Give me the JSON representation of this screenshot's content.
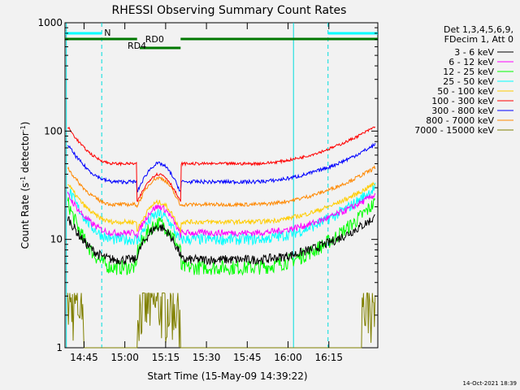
{
  "chart_data": {
    "type": "line",
    "title": "RHESSI Observing Summary Count Rates",
    "xlabel": "Start Time (15-May-09 14:39:22)",
    "ylabel_main": "Count Rate (s",
    "ylabel_sup1": "-1",
    "ylabel_mid": " detector",
    "ylabel_sup2": "-1",
    "ylabel_end": ")",
    "y_scale": "log",
    "ylim": [
      1,
      1000
    ],
    "xlim_minutes": [
      -1,
      114
    ],
    "x_ticks": [
      {
        "label": "14:45",
        "m": 6
      },
      {
        "label": "15:00",
        "m": 21
      },
      {
        "label": "15:15",
        "m": 36
      },
      {
        "label": "15:30",
        "m": 51
      },
      {
        "label": "15:45",
        "m": 66
      },
      {
        "label": "16:00",
        "m": 81
      },
      {
        "label": "16:15",
        "m": 96
      }
    ],
    "y_ticks": [
      {
        "label": "1",
        "v": 1
      },
      {
        "label": "10",
        "v": 10
      },
      {
        "label": "100",
        "v": 100
      },
      {
        "label": "1000",
        "v": 1000
      }
    ],
    "legend_header": [
      "Det 1,3,4,5,6,9,",
      "FDecim 1, Att 0"
    ],
    "series": [
      {
        "name": "3 - 6 keV",
        "color": "#000000",
        "edge": 16,
        "trough": 6.5,
        "mid": 13,
        "noise": 0.1
      },
      {
        "name": "6 - 12 keV",
        "color": "#ff00ff",
        "edge": 26,
        "trough": 11.5,
        "mid": 20,
        "noise": 0.07
      },
      {
        "name": "12 - 25 keV",
        "color": "#00ff00",
        "edge": 22,
        "trough": 5.5,
        "mid": 14,
        "noise": 0.16
      },
      {
        "name": "25 - 50 keV",
        "color": "#00ffff",
        "edge": 30,
        "trough": 10,
        "mid": 17,
        "noise": 0.12
      },
      {
        "name": "50 - 100 keV",
        "color": "#ffcc00",
        "edge": 33,
        "trough": 14.5,
        "mid": 22,
        "noise": 0.05
      },
      {
        "name": "100 - 300 keV",
        "color": "#ff0000",
        "edge": 110,
        "trough": 50,
        "mid": 40,
        "noise": 0.03
      },
      {
        "name": "300 - 800 keV",
        "color": "#0000ff",
        "edge": 75,
        "trough": 34,
        "mid": 50,
        "noise": 0.04
      },
      {
        "name": "800 - 7000 keV",
        "color": "#ff8800",
        "edge": 46,
        "trough": 21,
        "mid": 37,
        "noise": 0.04
      },
      {
        "name": "7000 - 15000 keV",
        "color": "#808000",
        "edge": 3,
        "trough": 1,
        "mid": 2.2,
        "noise": 0.3
      }
    ],
    "flags": [
      {
        "label": "N",
        "color": "#00ffff"
      },
      {
        "label": "RD0",
        "color": "#007700"
      },
      {
        "label": "RD4",
        "color": "#007700"
      }
    ],
    "footer_date": "14-Oct-2021 18:39"
  }
}
